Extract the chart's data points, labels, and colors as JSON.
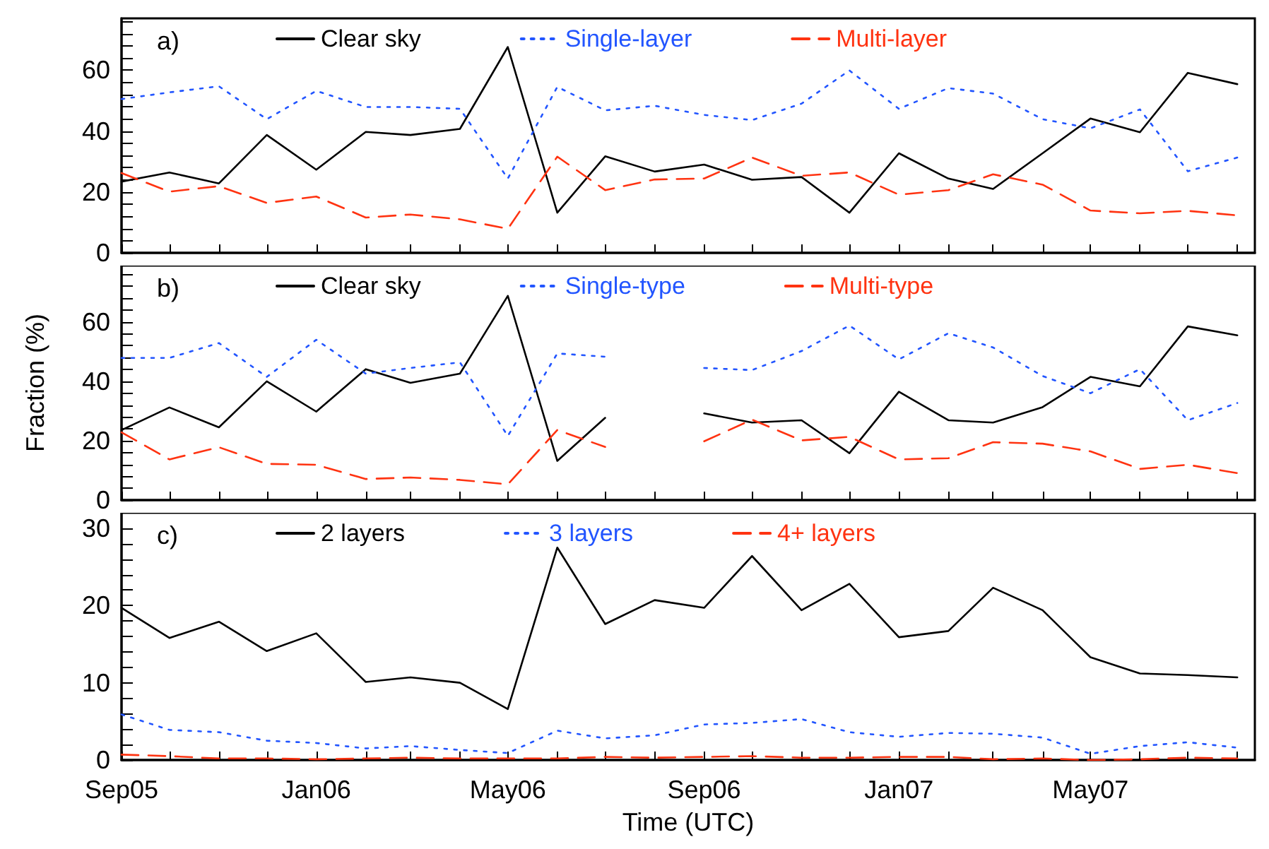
{
  "chart_data": [
    {
      "type": "line",
      "title": "a)",
      "legend": "top",
      "marker": "none",
      "grid": false,
      "tick_labels": "y",
      "x": [
        "2005-09",
        "2005-10",
        "2005-11",
        "2005-12",
        "2006-01",
        "2006-02",
        "2006-03",
        "2006-04",
        "2006-05",
        "2006-06",
        "2006-07",
        "2006-08",
        "2006-09",
        "2006-10",
        "2006-11",
        "2006-12",
        "2007-01",
        "2007-02",
        "2007-03",
        "2007-04",
        "2007-05",
        "2007-06",
        "2007-07",
        "2007-08"
      ],
      "xlim": [
        "2005-09-01",
        "2007-08-12"
      ],
      "xticks": [
        {
          "value": "2005-09",
          "label": null
        },
        {
          "value": "2005-10",
          "label": null
        },
        {
          "value": "2005-11",
          "label": null
        },
        {
          "value": "2005-12",
          "label": null
        },
        {
          "value": "2006-01",
          "label": null
        },
        {
          "value": "2006-02",
          "label": null
        },
        {
          "value": "2006-03",
          "label": null
        },
        {
          "value": "2006-04",
          "label": null
        },
        {
          "value": "2006-05",
          "label": null
        },
        {
          "value": "2006-06",
          "label": null
        },
        {
          "value": "2006-07",
          "label": null
        },
        {
          "value": "2006-08",
          "label": null
        },
        {
          "value": "2006-09",
          "label": null
        },
        {
          "value": "2006-10",
          "label": null
        },
        {
          "value": "2006-11",
          "label": null
        },
        {
          "value": "2006-12",
          "label": null
        },
        {
          "value": "2007-01",
          "label": null
        },
        {
          "value": "2007-02",
          "label": null
        },
        {
          "value": "2007-03",
          "label": null
        },
        {
          "value": "2007-04",
          "label": null
        },
        {
          "value": "2007-05",
          "label": null
        },
        {
          "value": "2007-06",
          "label": null
        },
        {
          "value": "2007-07",
          "label": null
        },
        {
          "value": "2007-08",
          "label": null
        }
      ],
      "ylim": [
        0,
        77
      ],
      "yticks": [
        0,
        {
          "value": 4,
          "label": null
        },
        {
          "value": 8,
          "label": null
        },
        {
          "value": 12,
          "label": null
        },
        {
          "value": 16,
          "label": null
        },
        20,
        {
          "value": 24,
          "label": null
        },
        {
          "value": 28,
          "label": null
        },
        {
          "value": 32,
          "label": null
        },
        {
          "value": 36,
          "label": null
        },
        40,
        {
          "value": 44,
          "label": null
        },
        {
          "value": 48,
          "label": null
        },
        {
          "value": 52,
          "label": null
        },
        {
          "value": 56,
          "label": null
        },
        60,
        {
          "value": 64,
          "label": null
        },
        {
          "value": 68,
          "label": null
        },
        {
          "value": 72,
          "label": null
        },
        {
          "value": 76,
          "label": null
        }
      ],
      "series": [
        {
          "name": "Clear sky",
          "color": "#000000",
          "line_style": "solid",
          "values": [
            23.4,
            26.4,
            22.8,
            38.7,
            27.3,
            39.7,
            38.7,
            40.7,
            67.6,
            13.2,
            31.7,
            26.7,
            29.0,
            24.0,
            24.9,
            13.2,
            32.7,
            24.4,
            21.0,
            32.7,
            44.1,
            39.6,
            59.1,
            55.4
          ]
        },
        {
          "name": "Single-layer",
          "color": "#2255ff",
          "line_style": "dotted",
          "values": [
            50.5,
            52.7,
            54.7,
            43.9,
            53.2,
            47.9,
            47.9,
            47.3,
            24.4,
            54.5,
            46.8,
            48.3,
            45.3,
            43.6,
            49.0,
            59.9,
            47.3,
            54.1,
            52.3,
            43.9,
            40.9,
            47.1,
            26.8,
            31.3
          ]
        },
        {
          "name": "Multi-layer",
          "color": "#ff3311",
          "line_style": "dashed",
          "values": [
            26.2,
            20.1,
            21.9,
            16.4,
            18.5,
            11.6,
            12.6,
            11.0,
            7.9,
            31.6,
            20.6,
            24.1,
            24.4,
            31.3,
            25.3,
            26.4,
            19.1,
            20.6,
            25.8,
            22.4,
            13.9,
            13.0,
            13.8,
            12.3
          ]
        }
      ]
    },
    {
      "type": "line",
      "title": "b)",
      "legend": "top",
      "marker": "none",
      "grid": false,
      "tick_labels": "y",
      "ylabel": "Fraction (%)",
      "x": [
        "2005-09",
        "2005-10",
        "2005-11",
        "2005-12",
        "2006-01",
        "2006-02",
        "2006-03",
        "2006-04",
        "2006-05",
        "2006-06",
        "2006-07",
        "2006-08",
        "2006-09",
        "2006-10",
        "2006-11",
        "2006-12",
        "2007-01",
        "2007-02",
        "2007-03",
        "2007-04",
        "2007-05",
        "2007-06",
        "2007-07",
        "2007-08"
      ],
      "xlim": [
        "2005-09-01",
        "2007-08-12"
      ],
      "xticks": [
        {
          "value": "2005-09",
          "label": null
        },
        {
          "value": "2005-10",
          "label": null
        },
        {
          "value": "2005-11",
          "label": null
        },
        {
          "value": "2005-12",
          "label": null
        },
        {
          "value": "2006-01",
          "label": null
        },
        {
          "value": "2006-02",
          "label": null
        },
        {
          "value": "2006-03",
          "label": null
        },
        {
          "value": "2006-04",
          "label": null
        },
        {
          "value": "2006-05",
          "label": null
        },
        {
          "value": "2006-06",
          "label": null
        },
        {
          "value": "2006-07",
          "label": null
        },
        {
          "value": "2006-08",
          "label": null
        },
        {
          "value": "2006-09",
          "label": null
        },
        {
          "value": "2006-10",
          "label": null
        },
        {
          "value": "2006-11",
          "label": null
        },
        {
          "value": "2006-12",
          "label": null
        },
        {
          "value": "2007-01",
          "label": null
        },
        {
          "value": "2007-02",
          "label": null
        },
        {
          "value": "2007-03",
          "label": null
        },
        {
          "value": "2007-04",
          "label": null
        },
        {
          "value": "2007-05",
          "label": null
        },
        {
          "value": "2007-06",
          "label": null
        },
        {
          "value": "2007-07",
          "label": null
        },
        {
          "value": "2007-08",
          "label": null
        }
      ],
      "ylim": [
        0,
        79
      ],
      "yticks": [
        0,
        {
          "value": 4,
          "label": null
        },
        {
          "value": 8,
          "label": null
        },
        {
          "value": 12,
          "label": null
        },
        {
          "value": 16,
          "label": null
        },
        20,
        {
          "value": 24,
          "label": null
        },
        {
          "value": 28,
          "label": null
        },
        {
          "value": 32,
          "label": null
        },
        {
          "value": 36,
          "label": null
        },
        40,
        {
          "value": 44,
          "label": null
        },
        {
          "value": 48,
          "label": null
        },
        {
          "value": 52,
          "label": null
        },
        {
          "value": 56,
          "label": null
        },
        60,
        {
          "value": 64,
          "label": null
        },
        {
          "value": 68,
          "label": null
        },
        {
          "value": 72,
          "label": null
        },
        {
          "value": 76,
          "label": null
        }
      ],
      "series": [
        {
          "name": "Clear sky",
          "color": "#000000",
          "line_style": "solid",
          "values": [
            23.6,
            31.2,
            24.5,
            40.0,
            29.8,
            44.1,
            39.5,
            42.6,
            68.8,
            13.2,
            27.7,
            null,
            29.2,
            26.1,
            26.9,
            15.8,
            36.5,
            26.9,
            26.1,
            31.3,
            41.5,
            38.3,
            58.5,
            55.5
          ]
        },
        {
          "name": "Single-type",
          "color": "#2255ff",
          "line_style": "dotted",
          "values": [
            47.9,
            47.9,
            52.9,
            41.5,
            54.0,
            42.6,
            44.5,
            46.4,
            21.6,
            49.4,
            48.3,
            null,
            44.5,
            43.8,
            50.2,
            58.8,
            47.4,
            56.2,
            51.4,
            41.8,
            36.0,
            44.1,
            26.9,
            32.7
          ]
        },
        {
          "name": "Multi-type",
          "color": "#ff3311",
          "line_style": "dashed",
          "values": [
            22.8,
            13.7,
            17.8,
            12.2,
            11.9,
            7.1,
            7.6,
            6.8,
            5.3,
            23.6,
            17.9,
            null,
            19.8,
            27.1,
            20.1,
            21.3,
            13.7,
            14.1,
            19.5,
            19.0,
            16.4,
            10.5,
            11.9,
            9.1
          ]
        }
      ]
    },
    {
      "type": "line",
      "title": "c)",
      "legend": "top",
      "marker": "none",
      "grid": false,
      "xlabel": "Time (UTC)",
      "x": [
        "2005-09",
        "2005-10",
        "2005-11",
        "2005-12",
        "2006-01",
        "2006-02",
        "2006-03",
        "2006-04",
        "2006-05",
        "2006-06",
        "2006-07",
        "2006-08",
        "2006-09",
        "2006-10",
        "2006-11",
        "2006-12",
        "2007-01",
        "2007-02",
        "2007-03",
        "2007-04",
        "2007-05",
        "2007-06",
        "2007-07",
        "2007-08"
      ],
      "xlim": [
        "2005-09-01",
        "2007-08-12"
      ],
      "xticks": [
        {
          "value": "2005-09",
          "label": "Sep05"
        },
        {
          "value": "2005-10",
          "label": null
        },
        {
          "value": "2005-11",
          "label": null
        },
        {
          "value": "2005-12",
          "label": null
        },
        {
          "value": "2006-01",
          "label": "Jan06"
        },
        {
          "value": "2006-02",
          "label": null
        },
        {
          "value": "2006-03",
          "label": null
        },
        {
          "value": "2006-04",
          "label": null
        },
        {
          "value": "2006-05",
          "label": "May06"
        },
        {
          "value": "2006-06",
          "label": null
        },
        {
          "value": "2006-07",
          "label": null
        },
        {
          "value": "2006-08",
          "label": null
        },
        {
          "value": "2006-09",
          "label": "Sep06"
        },
        {
          "value": "2006-10",
          "label": null
        },
        {
          "value": "2006-11",
          "label": null
        },
        {
          "value": "2006-12",
          "label": null
        },
        {
          "value": "2007-01",
          "label": "Jan07"
        },
        {
          "value": "2007-02",
          "label": null
        },
        {
          "value": "2007-03",
          "label": null
        },
        {
          "value": "2007-04",
          "label": null
        },
        {
          "value": "2007-05",
          "label": "May07"
        },
        {
          "value": "2007-06",
          "label": null
        },
        {
          "value": "2007-07",
          "label": null
        },
        {
          "value": "2007-08",
          "label": null
        }
      ],
      "ylim": [
        0,
        32
      ],
      "yticks": [
        0,
        {
          "value": 2,
          "label": null
        },
        {
          "value": 4,
          "label": null
        },
        {
          "value": 6,
          "label": null
        },
        {
          "value": 8,
          "label": null
        },
        10,
        {
          "value": 12,
          "label": null
        },
        {
          "value": 14,
          "label": null
        },
        {
          "value": 16,
          "label": null
        },
        {
          "value": 18,
          "label": null
        },
        20,
        {
          "value": 22,
          "label": null
        },
        {
          "value": 24,
          "label": null
        },
        {
          "value": 26,
          "label": null
        },
        {
          "value": 28,
          "label": null
        },
        30
      ],
      "series": [
        {
          "name": "2 layers",
          "color": "#000000",
          "line_style": "solid",
          "values": [
            19.7,
            15.8,
            17.9,
            14.1,
            16.4,
            10.1,
            10.7,
            10.0,
            6.6,
            27.5,
            17.6,
            20.7,
            19.7,
            26.4,
            19.4,
            22.8,
            15.9,
            16.7,
            22.3,
            19.4,
            13.3,
            11.2,
            11.0,
            10.7
          ]
        },
        {
          "name": "3 layers",
          "color": "#2255ff",
          "line_style": "dotted",
          "values": [
            5.9,
            3.9,
            3.6,
            2.5,
            2.2,
            1.5,
            1.8,
            1.3,
            0.9,
            3.8,
            2.8,
            3.2,
            4.6,
            4.8,
            5.3,
            3.6,
            3.0,
            3.5,
            3.4,
            2.9,
            0.8,
            1.8,
            2.3,
            1.6
          ]
        },
        {
          "name": "4+ layers",
          "color": "#ff3311",
          "line_style": "dashed",
          "values": [
            0.7,
            0.5,
            0.2,
            0.2,
            0.1,
            0.2,
            0.3,
            0.2,
            0.2,
            0.2,
            0.4,
            0.3,
            0.4,
            0.5,
            0.3,
            0.3,
            0.4,
            0.4,
            0.1,
            0.2,
            0.0,
            0.1,
            0.3,
            0.2
          ]
        }
      ]
    }
  ]
}
